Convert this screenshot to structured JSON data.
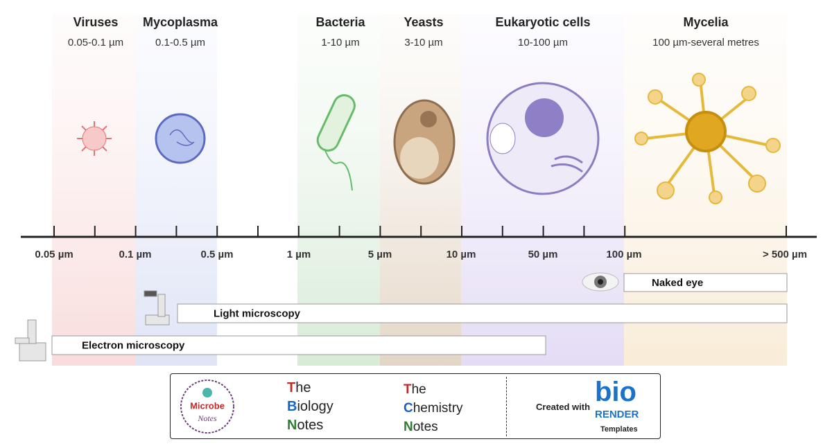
{
  "organisms": [
    {
      "name": "Viruses",
      "size": "0.05-0.1 µm"
    },
    {
      "name": "Mycoplasma",
      "size": "0.1-0.5 µm"
    },
    {
      "name": "Bacteria",
      "size": "1-10 µm"
    },
    {
      "name": "Yeasts",
      "size": "3-10 µm"
    },
    {
      "name": "Eukaryotic cells",
      "size": "10-100 µm"
    },
    {
      "name": "Mycelia",
      "size": "100 µm-several metres"
    }
  ],
  "axis": {
    "labels": [
      "0.05 µm",
      "0.1 µm",
      "0.5 µm",
      "1 µm",
      "5 µm",
      "10 µm",
      "50 µm",
      "100 µm",
      "> 500 µm"
    ]
  },
  "methods": [
    "Naked eye",
    "Light microscopy",
    "Electron microscopy"
  ],
  "footer": {
    "microbe_notes": {
      "name": "Microbe",
      "sub": "Notes"
    },
    "biology_notes": [
      "The",
      "Biology",
      "Notes"
    ],
    "chemistry_notes": [
      "The",
      "Chemistry",
      "Notes"
    ],
    "credit": {
      "text": "Created with",
      "brand": "bio",
      "brand_sub": "RENDER",
      "note": "Templates"
    }
  }
}
